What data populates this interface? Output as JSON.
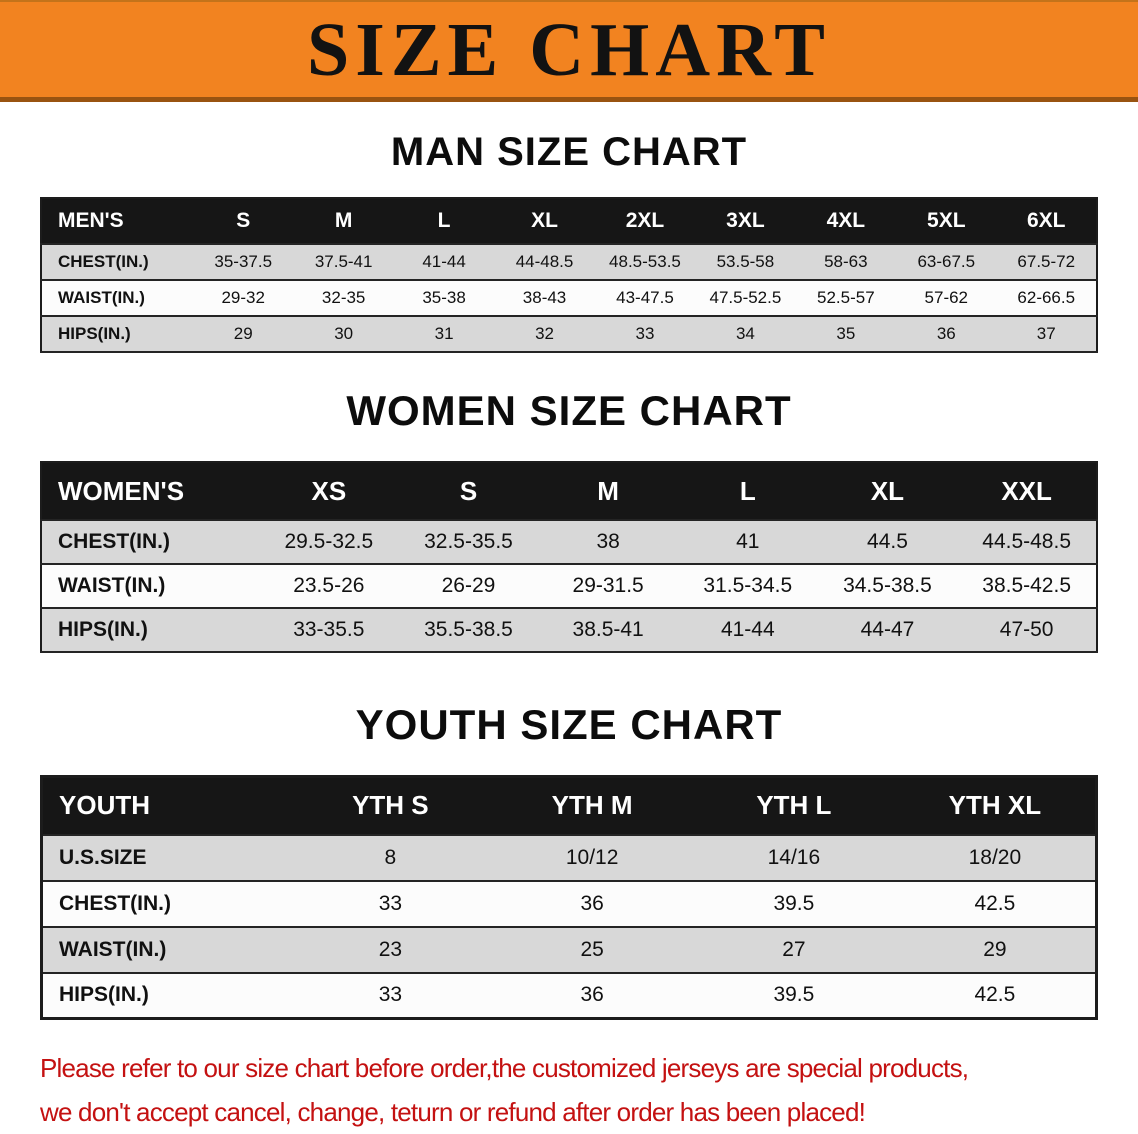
{
  "banner": {
    "title": "SIZE CHART"
  },
  "chart_data": [
    {
      "type": "table",
      "title": "MAN SIZE CHART",
      "header_label": "MEN'S",
      "columns": [
        "S",
        "M",
        "L",
        "XL",
        "2XL",
        "3XL",
        "4XL",
        "5XL",
        "6XL"
      ],
      "rows": [
        {
          "label": "CHEST(IN.)",
          "values": [
            "35-37.5",
            "37.5-41",
            "41-44",
            "44-48.5",
            "48.5-53.5",
            "53.5-58",
            "58-63",
            "63-67.5",
            "67.5-72"
          ]
        },
        {
          "label": "WAIST(IN.)",
          "values": [
            "29-32",
            "32-35",
            "35-38",
            "38-43",
            "43-47.5",
            "47.5-52.5",
            "52.5-57",
            "57-62",
            "62-66.5"
          ]
        },
        {
          "label": "HIPS(IN.)",
          "values": [
            "29",
            "30",
            "31",
            "32",
            "33",
            "34",
            "35",
            "36",
            "37"
          ]
        }
      ]
    },
    {
      "type": "table",
      "title": "WOMEN SIZE CHART",
      "header_label": "WOMEN'S",
      "columns": [
        "XS",
        "S",
        "M",
        "L",
        "XL",
        "XXL"
      ],
      "rows": [
        {
          "label": "CHEST(IN.)",
          "values": [
            "29.5-32.5",
            "32.5-35.5",
            "38",
            "41",
            "44.5",
            "44.5-48.5"
          ]
        },
        {
          "label": "WAIST(IN.)",
          "values": [
            "23.5-26",
            "26-29",
            "29-31.5",
            "31.5-34.5",
            "34.5-38.5",
            "38.5-42.5"
          ]
        },
        {
          "label": "HIPS(IN.)",
          "values": [
            "33-35.5",
            "35.5-38.5",
            "38.5-41",
            "41-44",
            "44-47",
            "47-50"
          ]
        }
      ]
    },
    {
      "type": "table",
      "title": "YOUTH SIZE CHART",
      "header_label": "YOUTH",
      "columns": [
        "YTH S",
        "YTH M",
        "YTH L",
        "YTH XL"
      ],
      "rows": [
        {
          "label": "U.S.SIZE",
          "values": [
            "8",
            "10/12",
            "14/16",
            "18/20"
          ]
        },
        {
          "label": "CHEST(IN.)",
          "values": [
            "33",
            "36",
            "39.5",
            "42.5"
          ]
        },
        {
          "label": "WAIST(IN.)",
          "values": [
            "23",
            "25",
            "27",
            "29"
          ]
        },
        {
          "label": "HIPS(IN.)",
          "values": [
            "33",
            "36",
            "39.5",
            "42.5"
          ]
        }
      ]
    }
  ],
  "footer": {
    "line1": "Please refer to our size chart before order,the customized jerseys are special products,",
    "line2": "we don't accept cancel, change, teturn or refund after order has been placed!"
  },
  "colors": {
    "banner_orange": "#F28320",
    "header_bar_black": "#161616",
    "row_gray": "#D8D8D8",
    "footer_red": "#C41111"
  }
}
